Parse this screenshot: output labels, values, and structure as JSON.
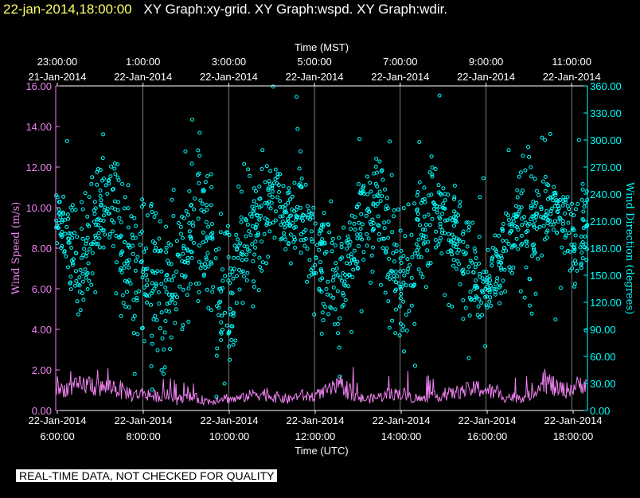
{
  "header": {
    "timestamp": "22-jan-2014,18:00:00",
    "title": "XY Graph:xy-grid.  XY Graph:wspd.  XY Graph:wdir."
  },
  "footer": {
    "quality_note": "REAL-TIME DATA, NOT CHECKED FOR QUALITY"
  },
  "colors": {
    "wspd": "#ee82ee",
    "wdir": "#00ffff",
    "axes": "#ffffff",
    "grid": "#ffffff",
    "background": "#000000"
  },
  "chart_data": {
    "type": "scatter",
    "grid": true,
    "top_axis": {
      "label": "Time (MST)",
      "ticks": [
        {
          "time": "23:00:00",
          "date": "21-Jan-2014"
        },
        {
          "time": "1:00:00",
          "date": "22-Jan-2014"
        },
        {
          "time": "3:00:00",
          "date": "22-Jan-2014"
        },
        {
          "time": "5:00:00",
          "date": "22-Jan-2014"
        },
        {
          "time": "7:00:00",
          "date": "22-Jan-2014"
        },
        {
          "time": "9:00:00",
          "date": "22-Jan-2014"
        },
        {
          "time": "11:00:00",
          "date": "22-Jan-2014"
        }
      ]
    },
    "bottom_axis": {
      "label": "Time (UTC)",
      "ticks": [
        {
          "time": "6:00:00",
          "date": "22-Jan-2014"
        },
        {
          "time": "8:00:00",
          "date": "22-Jan-2014"
        },
        {
          "time": "10:00:00",
          "date": "22-Jan-2014"
        },
        {
          "time": "12:00:00",
          "date": "22-Jan-2014"
        },
        {
          "time": "14:00:00",
          "date": "22-Jan-2014"
        },
        {
          "time": "16:00:00",
          "date": "22-Jan-2014"
        },
        {
          "time": "18:00:00",
          "date": "22-Jan-2014"
        }
      ],
      "xlim_utc_hours": [
        6.0,
        18.0
      ]
    },
    "left_axis": {
      "label": "Wind Speed (m/s)",
      "ylim": [
        0,
        16
      ],
      "tick_labels": [
        "0.00",
        "2.00",
        "4.00",
        "6.00",
        "8.00",
        "10.00",
        "12.00",
        "14.00",
        "16.00"
      ]
    },
    "right_axis": {
      "label": "Wind Direction (degrees)",
      "ylim": [
        0,
        360
      ],
      "tick_labels": [
        "0.00",
        "30.00",
        "60.00",
        "90.00",
        "120.00",
        "150.00",
        "180.00",
        "210.00",
        "240.00",
        "270.00",
        "300.00",
        "330.00",
        "360.00"
      ]
    },
    "series": [
      {
        "id": "wspd",
        "style": "line",
        "axis": "left",
        "x_utc_hours": [
          6.0,
          6.25,
          6.5,
          6.75,
          7.0,
          7.25,
          7.5,
          7.75,
          8.0,
          8.25,
          8.5,
          8.75,
          9.0,
          9.25,
          9.5,
          9.75,
          10.0,
          10.25,
          10.5,
          10.75,
          11.0,
          11.25,
          11.5,
          11.75,
          12.0,
          12.25,
          12.5,
          12.75,
          13.0,
          13.25,
          13.5,
          13.75,
          14.0,
          14.25,
          14.5,
          14.75,
          15.0,
          15.25,
          15.5,
          15.75,
          16.0,
          16.25,
          16.5,
          16.75,
          17.0,
          17.25,
          17.5,
          17.75,
          18.0
        ],
        "values": [
          0.9,
          1.0,
          1.1,
          1.2,
          1.0,
          1.1,
          0.9,
          0.7,
          0.8,
          0.6,
          0.7,
          0.5,
          0.6,
          0.5,
          0.4,
          0.6,
          0.5,
          0.6,
          0.8,
          0.7,
          0.6,
          0.5,
          0.7,
          0.6,
          0.8,
          1.0,
          1.1,
          0.6,
          0.5,
          0.6,
          0.7,
          0.8,
          0.6,
          0.5,
          0.6,
          0.7,
          0.8,
          0.9,
          1.0,
          0.9,
          0.7,
          0.6,
          0.6,
          0.7,
          1.4,
          1.0,
          0.9,
          1.1,
          1.3
        ]
      },
      {
        "id": "wdir",
        "style": "markers",
        "axis": "right",
        "x_utc_hours": [
          6.0,
          6.25,
          6.5,
          6.75,
          7.0,
          7.25,
          7.5,
          7.75,
          8.0,
          8.25,
          8.5,
          8.75,
          9.0,
          9.25,
          9.5,
          9.75,
          10.0,
          10.25,
          10.5,
          10.75,
          11.0,
          11.25,
          11.5,
          11.75,
          12.0,
          12.25,
          12.5,
          12.75,
          13.0,
          13.25,
          13.5,
          13.75,
          14.0,
          14.25,
          14.5,
          14.75,
          15.0,
          15.25,
          15.5,
          15.75,
          16.0,
          16.25,
          16.5,
          16.75,
          17.0,
          17.25,
          17.5,
          17.75,
          18.0
        ],
        "values": [
          225,
          200,
          160,
          180,
          210,
          240,
          195,
          170,
          150,
          140,
          130,
          160,
          190,
          220,
          180,
          110,
          140,
          170,
          200,
          230,
          230,
          210,
          230,
          180,
          170,
          140,
          150,
          200,
          220,
          230,
          190,
          140,
          160,
          190,
          230,
          220,
          200,
          170,
          150,
          140,
          160,
          190,
          230,
          210,
          220,
          230,
          200,
          180,
          210
        ],
        "spread_deg": [
          40,
          50,
          60,
          60,
          70,
          60,
          70,
          80,
          80,
          80,
          90,
          80,
          80,
          80,
          90,
          80,
          80,
          70,
          60,
          40,
          35,
          50,
          50,
          70,
          80,
          60,
          60,
          80,
          70,
          70,
          80,
          80,
          70,
          60,
          50,
          50,
          60,
          50,
          40,
          40,
          50,
          60,
          70,
          70,
          40,
          40,
          60,
          70,
          70
        ]
      }
    ]
  }
}
